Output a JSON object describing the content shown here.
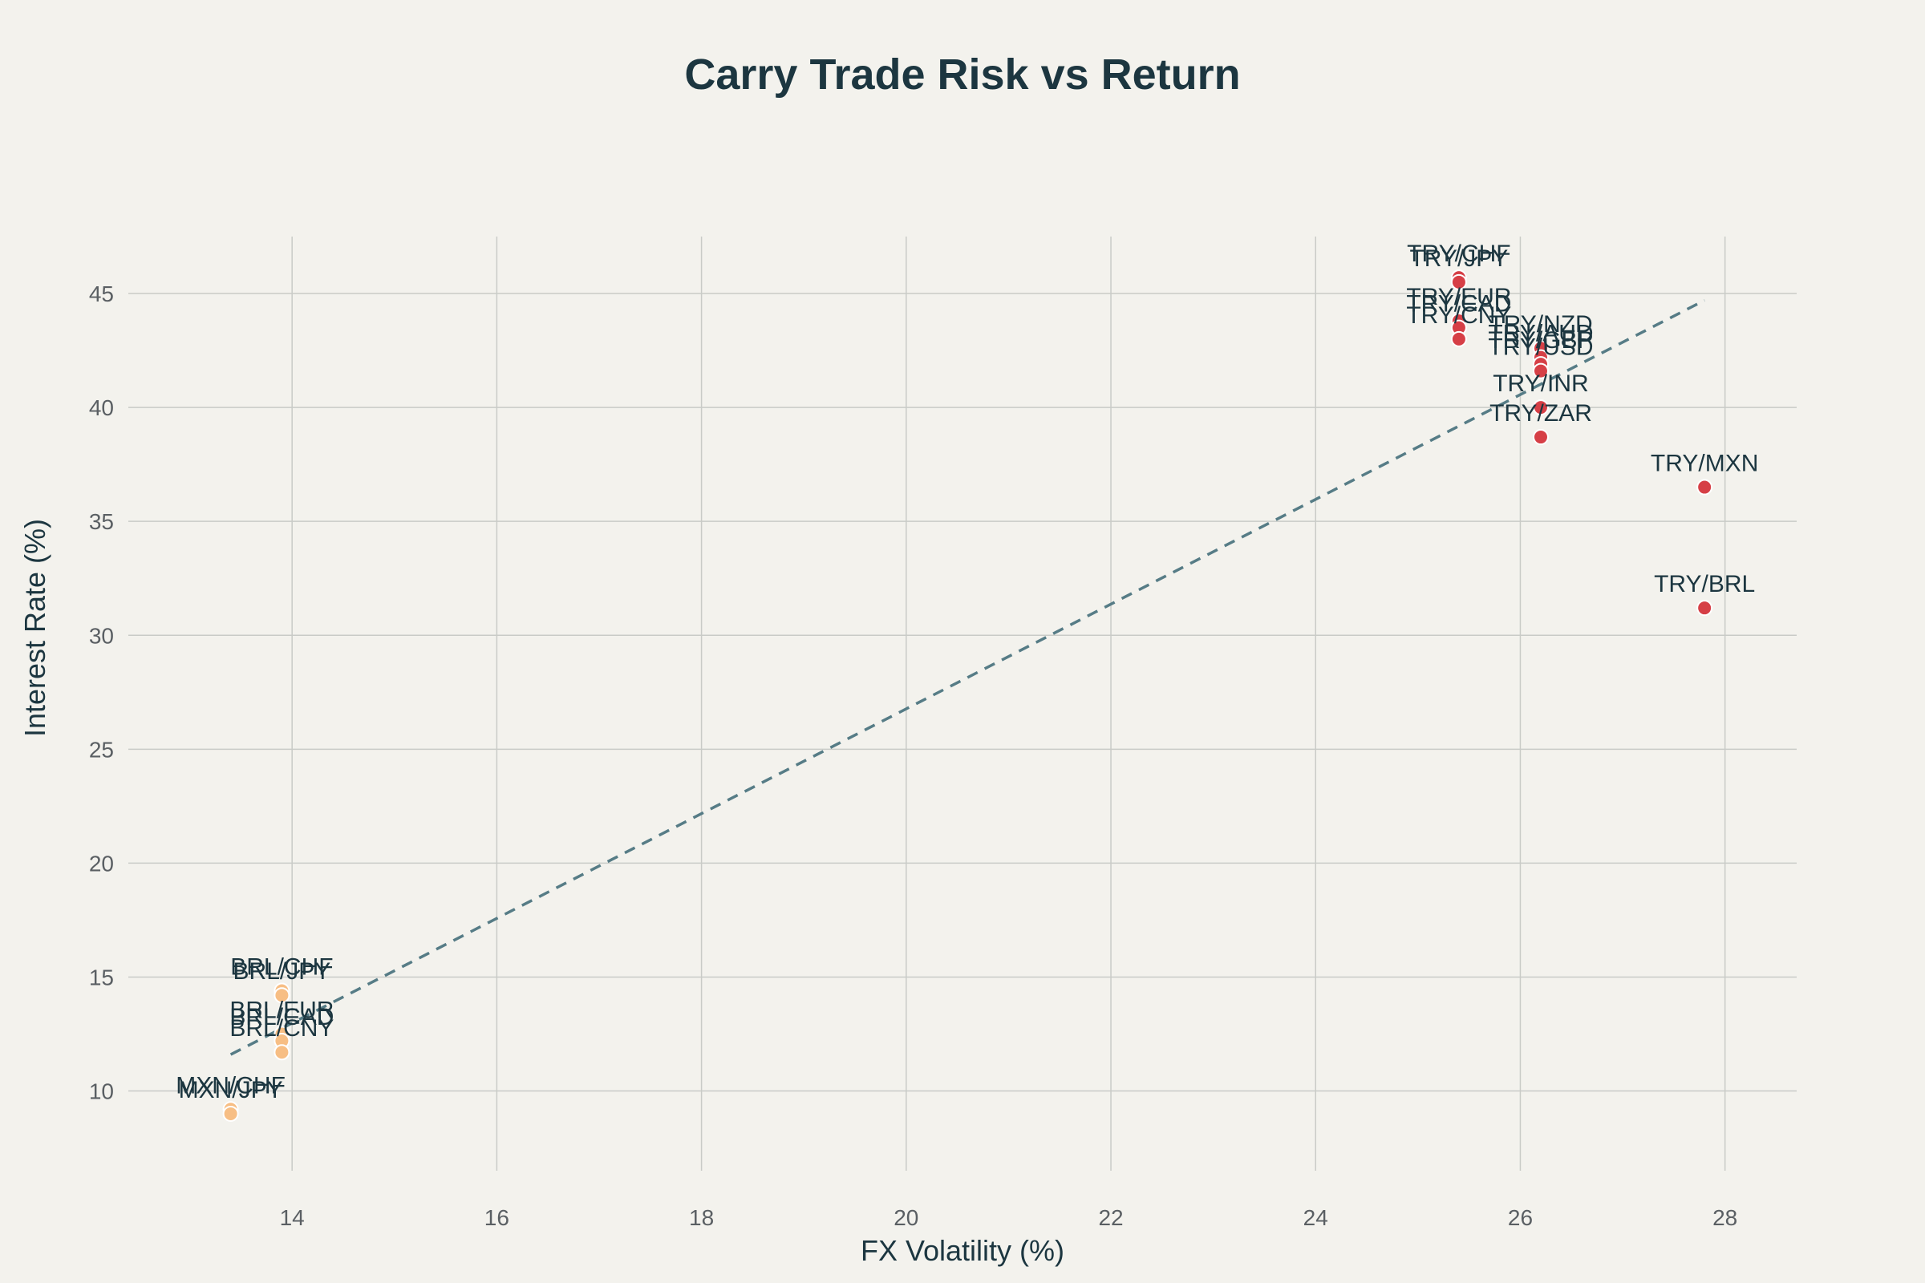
{
  "chart_data": {
    "type": "scatter",
    "title": "Carry Trade Risk vs Return",
    "xlabel": "FX Volatility (%)",
    "ylabel": "Interest Rate (%)",
    "xlim": [
      12.4,
      28.7
    ],
    "ylim": [
      6.5,
      47.5
    ],
    "xticks": [
      14,
      16,
      18,
      20,
      22,
      24,
      26,
      28
    ],
    "yticks": [
      10,
      15,
      20,
      25,
      30,
      35,
      40,
      45
    ],
    "grid": true,
    "legend": "none",
    "colors": {
      "low": "#f7be84",
      "high": "#d63f46",
      "trend": "#567c86"
    },
    "points": [
      {
        "label": "TRY/CHF",
        "x": 25.4,
        "y": 45.7,
        "group": "high"
      },
      {
        "label": "TRY/JPY",
        "x": 25.4,
        "y": 45.5,
        "group": "high"
      },
      {
        "label": "TRY/EUR",
        "x": 25.4,
        "y": 43.8,
        "group": "high"
      },
      {
        "label": "TRY/CAD",
        "x": 25.4,
        "y": 43.5,
        "group": "high"
      },
      {
        "label": "TRY/CNY",
        "x": 25.4,
        "y": 43.0,
        "group": "high"
      },
      {
        "label": "TRY/NZD",
        "x": 26.2,
        "y": 42.6,
        "group": "high"
      },
      {
        "label": "TRY/AUD",
        "x": 26.2,
        "y": 42.2,
        "group": "high"
      },
      {
        "label": "TRY/GBP",
        "x": 26.2,
        "y": 41.9,
        "group": "high"
      },
      {
        "label": "TRY/USD",
        "x": 26.2,
        "y": 41.6,
        "group": "high"
      },
      {
        "label": "TRY/INR",
        "x": 26.2,
        "y": 40.0,
        "group": "high"
      },
      {
        "label": "TRY/ZAR",
        "x": 26.2,
        "y": 38.7,
        "group": "high"
      },
      {
        "label": "TRY/MXN",
        "x": 27.8,
        "y": 36.5,
        "group": "high"
      },
      {
        "label": "TRY/BRL",
        "x": 27.8,
        "y": 31.2,
        "group": "high"
      },
      {
        "label": "BRL/CHF",
        "x": 13.9,
        "y": 14.4,
        "group": "low"
      },
      {
        "label": "BRL/JPY",
        "x": 13.9,
        "y": 14.2,
        "group": "low"
      },
      {
        "label": "BRL/EUR",
        "x": 13.9,
        "y": 12.5,
        "group": "low"
      },
      {
        "label": "BRL/CAD",
        "x": 13.9,
        "y": 12.2,
        "group": "low"
      },
      {
        "label": "BRL/CNY",
        "x": 13.9,
        "y": 11.7,
        "group": "low"
      },
      {
        "label": "MXN/CHF",
        "x": 13.4,
        "y": 9.2,
        "group": "low"
      },
      {
        "label": "MXN/JPY",
        "x": 13.4,
        "y": 9.0,
        "group": "low"
      }
    ],
    "trendline": {
      "x": [
        13.4,
        27.8
      ],
      "y": [
        11.6,
        44.7
      ],
      "style": "dashed"
    }
  }
}
